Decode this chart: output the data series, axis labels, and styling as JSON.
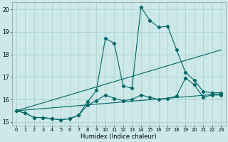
{
  "xlabel": "Humidex (Indice chaleur)",
  "bg_color": "#cce8e8",
  "grid_color": "#aacccc",
  "line_color": "#006666",
  "xlim": [
    -0.5,
    23.5
  ],
  "ylim": [
    14.85,
    20.3
  ],
  "yticks": [
    15,
    16,
    17,
    18,
    19,
    20
  ],
  "xticks": [
    0,
    1,
    2,
    3,
    4,
    5,
    6,
    7,
    8,
    9,
    10,
    11,
    12,
    13,
    14,
    15,
    16,
    17,
    18,
    19,
    20,
    21,
    22,
    23
  ],
  "curve1_x": [
    0,
    1,
    2,
    3,
    4,
    5,
    6,
    7,
    8,
    9,
    10,
    11,
    12,
    13,
    14,
    15,
    16,
    17,
    18,
    19,
    20,
    21,
    22,
    23
  ],
  "curve1_y": [
    15.5,
    15.4,
    15.2,
    15.2,
    15.15,
    15.1,
    15.15,
    15.3,
    15.9,
    16.4,
    18.7,
    18.5,
    16.6,
    16.5,
    20.1,
    19.5,
    19.2,
    19.25,
    18.2,
    17.2,
    16.85,
    16.35,
    16.3,
    16.3
  ],
  "curve2_x": [
    0,
    1,
    2,
    3,
    4,
    5,
    6,
    7,
    8,
    9,
    10,
    11,
    12,
    13,
    14,
    15,
    16,
    17,
    18,
    19,
    20,
    21,
    22,
    23
  ],
  "curve2_y": [
    15.5,
    15.4,
    15.2,
    15.2,
    15.15,
    15.1,
    15.15,
    15.3,
    15.75,
    15.95,
    16.2,
    16.05,
    15.95,
    16.0,
    16.2,
    16.1,
    16.0,
    16.05,
    16.15,
    16.95,
    16.65,
    16.1,
    16.2,
    16.2
  ],
  "curve3_x": [
    0,
    23
  ],
  "curve3_y": [
    15.5,
    16.25
  ],
  "curve4_x": [
    0,
    23
  ],
  "curve4_y": [
    15.5,
    18.2
  ]
}
